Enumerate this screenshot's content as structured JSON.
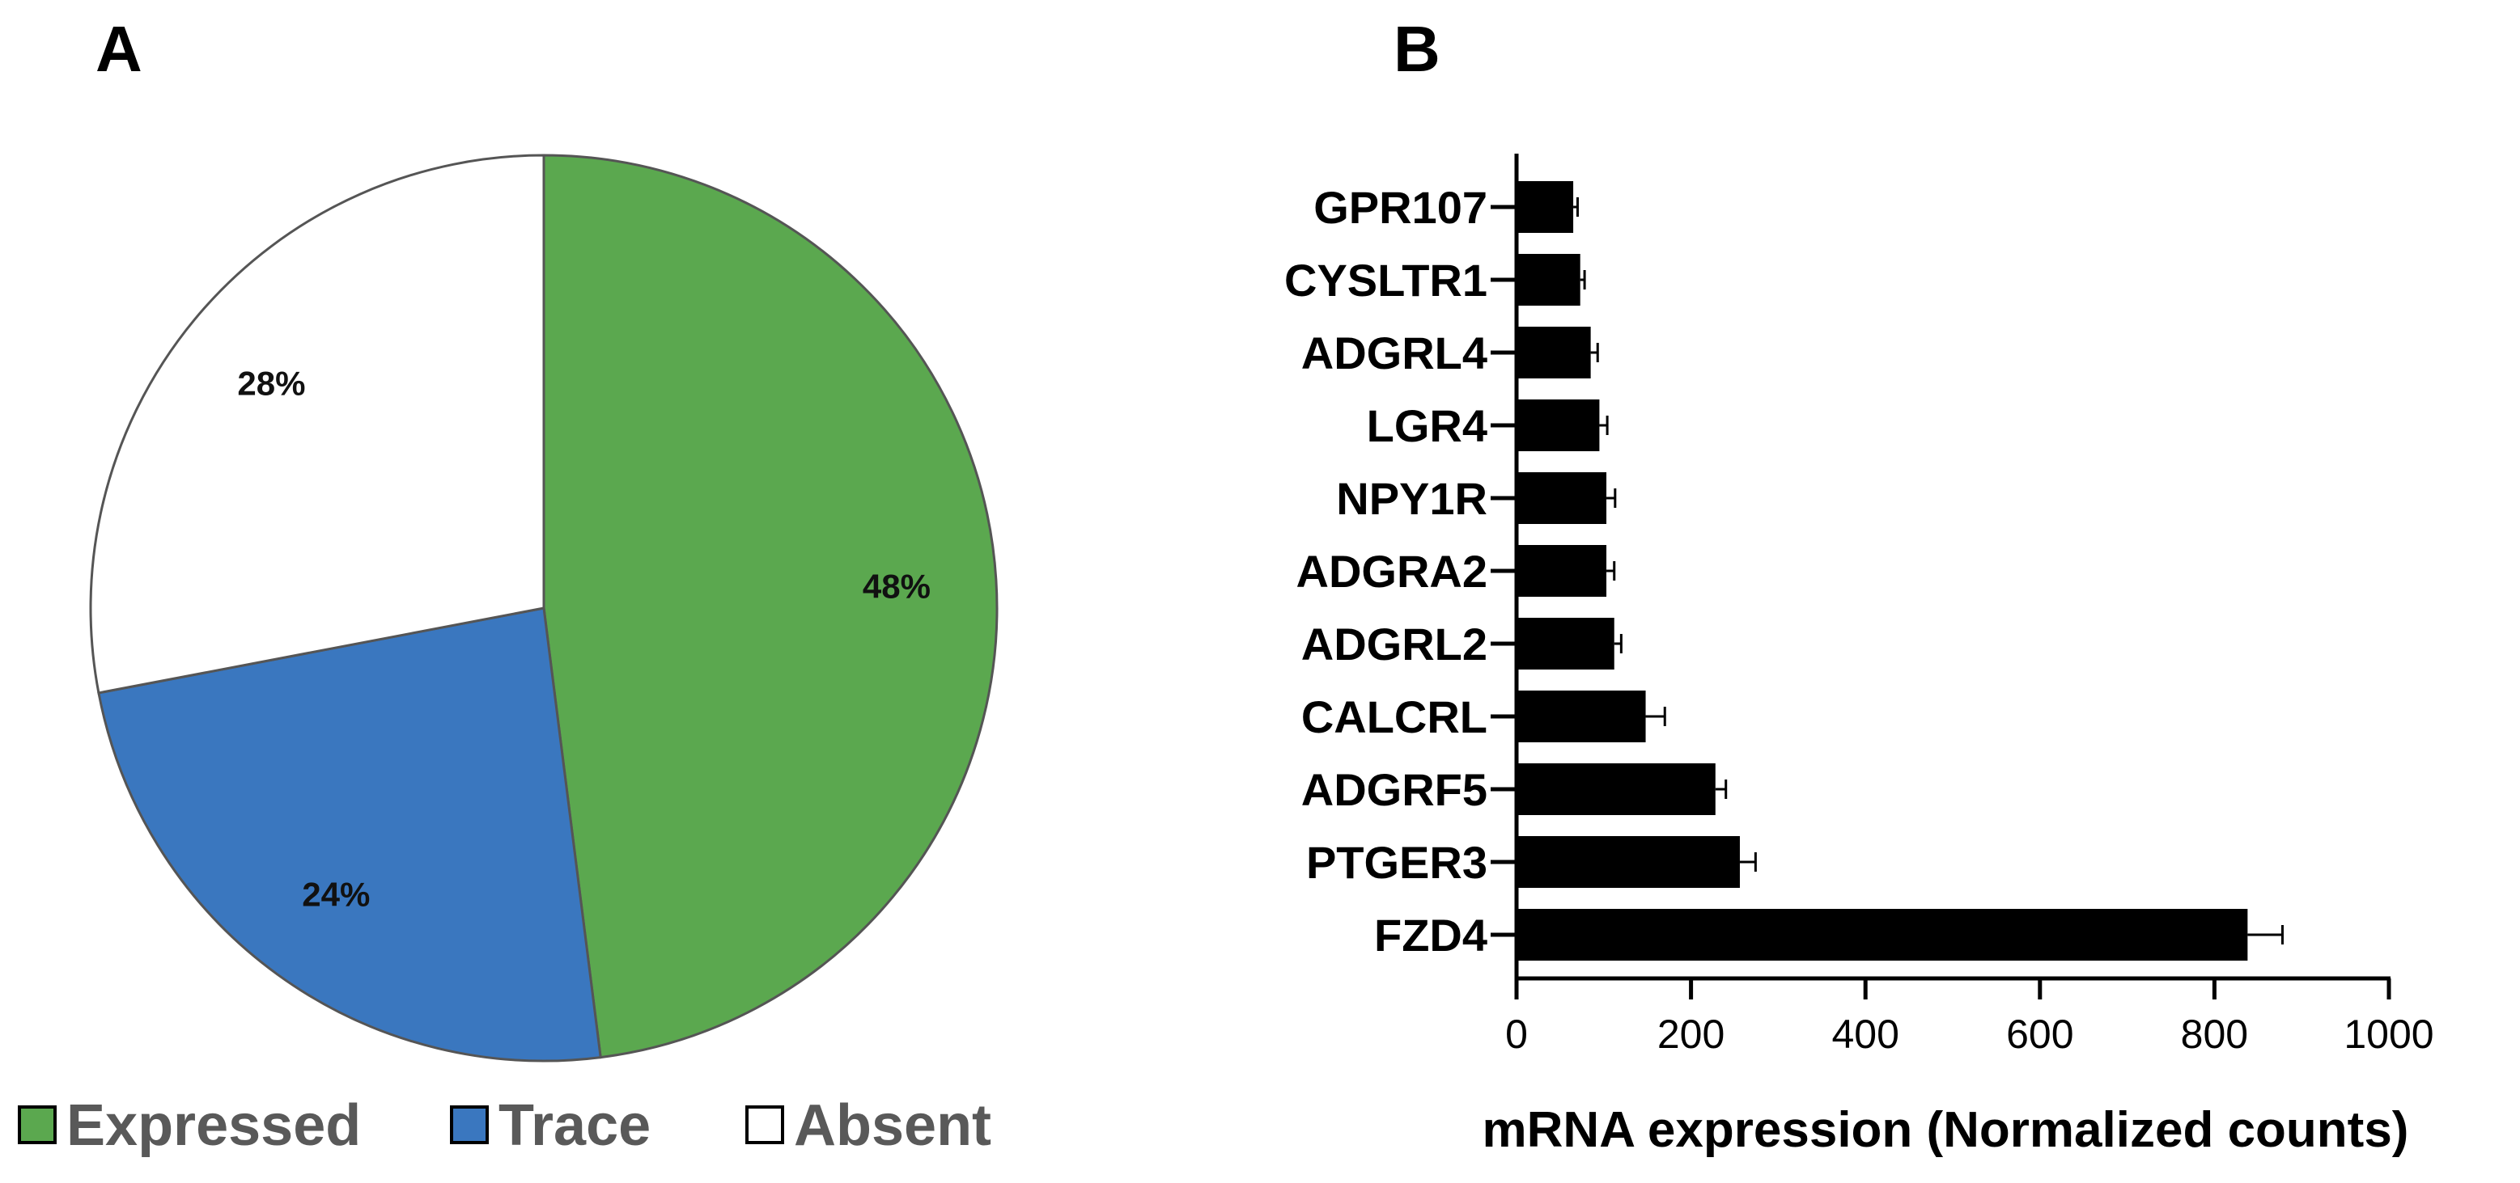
{
  "colors": {
    "expressed": "#5ba84f",
    "trace": "#3a77bf",
    "absent": "#ffffff",
    "bar": "#000000"
  },
  "chart_data": [
    {
      "panel": "A",
      "type": "pie",
      "slices": [
        {
          "name": "Expressed",
          "value": 48,
          "label": "48%"
        },
        {
          "name": "Trace",
          "value": 24,
          "label": "24%"
        },
        {
          "name": "Absent",
          "value": 28,
          "label": "28%"
        }
      ],
      "legend": [
        "Expressed",
        "Trace",
        "Absent"
      ],
      "legend_position": "bottom"
    },
    {
      "panel": "B",
      "type": "bar",
      "orientation": "horizontal",
      "categories": [
        "GPR107",
        "CYSLTR1",
        "ADGRL4",
        "LGR4",
        "NPY1R",
        "ADGRA2",
        "ADGRL2",
        "CALCRL",
        "ADGRF5",
        "PTGER3",
        "FZD4"
      ],
      "values": [
        65,
        73,
        85,
        95,
        103,
        103,
        112,
        148,
        228,
        256,
        838
      ],
      "errors": [
        5,
        5,
        8,
        9,
        10,
        9,
        8,
        22,
        12,
        18,
        40
      ],
      "xlabel": "mRNA expression (Normalized counts)",
      "xlim": [
        0,
        1000
      ],
      "xticks": [
        0,
        200,
        400,
        600,
        800,
        1000
      ],
      "grid": false
    }
  ]
}
